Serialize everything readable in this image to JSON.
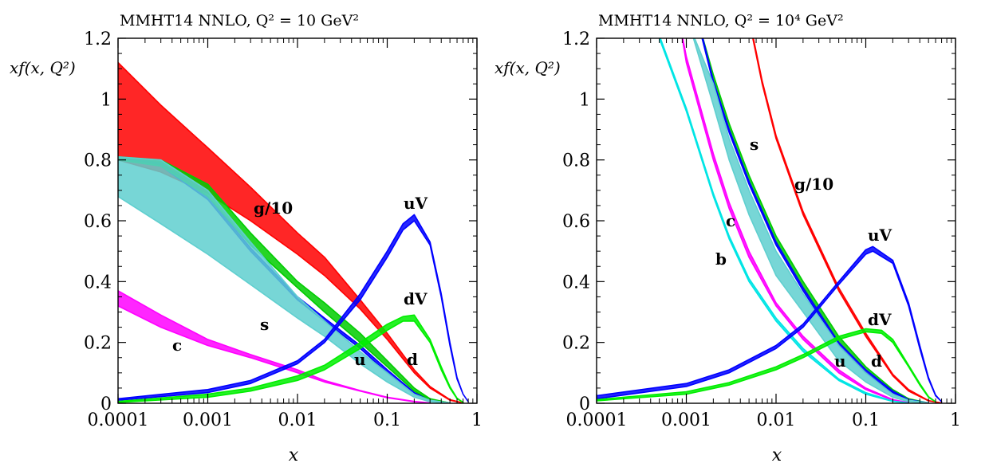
{
  "chart_data": [
    {
      "type": "line",
      "title": "MMHT14 NNLO, Q² = 10 GeV²",
      "xlabel": "x",
      "ylabel": "xf(x, Q²)",
      "xscale": "log",
      "xlim": [
        0.0001,
        1
      ],
      "ylim": [
        0,
        1.2
      ],
      "x_ticks": [
        "0.0001",
        "0.001",
        "0.01",
        "0.1",
        "1"
      ],
      "y_ticks": [
        "0",
        "0.2",
        "0.4",
        "0.6",
        "0.8",
        "1",
        "1.2"
      ],
      "series": [
        {
          "name": "g/10",
          "color": "#ff0000",
          "x": [
            0.0001,
            0.0003,
            0.001,
            0.003,
            0.01,
            0.02,
            0.05,
            0.1,
            0.2,
            0.3,
            0.5,
            0.7
          ],
          "lower": [
            0.8,
            0.76,
            0.69,
            0.6,
            0.49,
            0.42,
            0.31,
            0.21,
            0.1,
            0.05,
            0.01,
            0.001
          ],
          "upper": [
            1.12,
            0.98,
            0.84,
            0.71,
            0.56,
            0.48,
            0.34,
            0.23,
            0.11,
            0.055,
            0.012,
            0.001
          ]
        },
        {
          "name": "ubar",
          "color": "#0000ff",
          "x": [
            0.0001,
            0.0003,
            0.001,
            0.003,
            0.01,
            0.02,
            0.05,
            0.1,
            0.2,
            0.3,
            0.5
          ],
          "lower": [
            0.8,
            0.78,
            0.67,
            0.5,
            0.34,
            0.27,
            0.18,
            0.1,
            0.03,
            0.01,
            0.001
          ],
          "upper": [
            0.81,
            0.79,
            0.68,
            0.51,
            0.35,
            0.28,
            0.19,
            0.11,
            0.035,
            0.012,
            0.001
          ]
        },
        {
          "name": "dbar",
          "color": "#00cc00",
          "x": [
            0.0001,
            0.0003,
            0.001,
            0.003,
            0.01,
            0.02,
            0.05,
            0.1,
            0.2,
            0.3,
            0.5
          ],
          "lower": [
            0.8,
            0.78,
            0.68,
            0.52,
            0.38,
            0.3,
            0.2,
            0.12,
            0.04,
            0.012,
            0.001
          ],
          "upper": [
            0.81,
            0.8,
            0.72,
            0.56,
            0.4,
            0.33,
            0.23,
            0.14,
            0.05,
            0.015,
            0.001
          ]
        },
        {
          "name": "s",
          "color": "#5fcfcf",
          "x": [
            0.0001,
            0.0003,
            0.001,
            0.003,
            0.01,
            0.02,
            0.05,
            0.1,
            0.2,
            0.3,
            0.5
          ],
          "lower": [
            0.68,
            0.59,
            0.49,
            0.39,
            0.28,
            0.22,
            0.13,
            0.07,
            0.02,
            0.005,
            0.0005
          ],
          "upper": [
            0.81,
            0.8,
            0.7,
            0.53,
            0.35,
            0.27,
            0.17,
            0.1,
            0.03,
            0.01,
            0.001
          ]
        },
        {
          "name": "c",
          "color": "#ff00ff",
          "x": [
            0.0001,
            0.0003,
            0.001,
            0.003,
            0.01,
            0.02,
            0.05,
            0.1,
            0.2,
            0.3
          ],
          "lower": [
            0.32,
            0.25,
            0.19,
            0.15,
            0.1,
            0.07,
            0.04,
            0.018,
            0.005,
            0.001
          ],
          "upper": [
            0.37,
            0.29,
            0.21,
            0.16,
            0.11,
            0.075,
            0.042,
            0.02,
            0.006,
            0.001
          ]
        },
        {
          "name": "u_V",
          "color": "#0000ff",
          "x": [
            0.0001,
            0.001,
            0.003,
            0.01,
            0.02,
            0.05,
            0.1,
            0.15,
            0.2,
            0.3,
            0.4,
            0.5,
            0.6,
            0.7,
            0.8
          ],
          "lower": [
            0.01,
            0.035,
            0.065,
            0.13,
            0.2,
            0.34,
            0.48,
            0.57,
            0.6,
            0.52,
            0.35,
            0.19,
            0.08,
            0.03,
            0.005
          ],
          "upper": [
            0.015,
            0.045,
            0.075,
            0.14,
            0.21,
            0.36,
            0.5,
            0.59,
            0.62,
            0.53,
            0.36,
            0.2,
            0.085,
            0.03,
            0.005
          ]
        },
        {
          "name": "d_V",
          "color": "#00ee00",
          "x": [
            0.0001,
            0.001,
            0.003,
            0.01,
            0.02,
            0.05,
            0.1,
            0.15,
            0.2,
            0.3,
            0.4,
            0.5,
            0.6,
            0.7
          ],
          "lower": [
            0.003,
            0.02,
            0.04,
            0.075,
            0.11,
            0.18,
            0.24,
            0.27,
            0.27,
            0.2,
            0.11,
            0.05,
            0.015,
            0.003
          ],
          "upper": [
            0.006,
            0.03,
            0.05,
            0.09,
            0.125,
            0.2,
            0.26,
            0.285,
            0.29,
            0.21,
            0.12,
            0.055,
            0.017,
            0.003
          ]
        }
      ],
      "labels": [
        {
          "name": "g/10",
          "text": "g/10",
          "color": "#ff0000"
        },
        {
          "name": "u_V",
          "text": "uV",
          "color": "#0000cc"
        },
        {
          "name": "d_V",
          "text": "dV",
          "color": "#00dd00"
        },
        {
          "name": "s",
          "text": "s",
          "color": "#5fcfcf"
        },
        {
          "name": "ubar",
          "text": "u",
          "color": "#0000cc"
        },
        {
          "name": "dbar",
          "text": "d",
          "color": "#00dd00"
        },
        {
          "name": "c",
          "text": "c",
          "color": "#ff00ff"
        }
      ]
    },
    {
      "type": "line",
      "title": "MMHT14 NNLO, Q² = 10⁴ GeV²",
      "xlabel": "x",
      "ylabel": "xf(x, Q²)",
      "xscale": "log",
      "xlim": [
        0.0001,
        1
      ],
      "ylim": [
        0,
        1.2
      ],
      "x_ticks": [
        "0.0001",
        "0.001",
        "0.01",
        "0.1",
        "1"
      ],
      "y_ticks": [
        "0",
        "0.2",
        "0.4",
        "0.6",
        "0.8",
        "1",
        "1.2"
      ],
      "series": [
        {
          "name": "g/10",
          "color": "#ff0000",
          "x": [
            0.0055,
            0.007,
            0.01,
            0.02,
            0.05,
            0.1,
            0.2,
            0.3,
            0.5,
            0.7
          ],
          "lower": [
            1.2,
            1.05,
            0.87,
            0.62,
            0.37,
            0.22,
            0.09,
            0.04,
            0.008,
            0.001
          ],
          "upper": [
            1.21,
            1.06,
            0.88,
            0.63,
            0.38,
            0.23,
            0.095,
            0.045,
            0.009,
            0.001
          ]
        },
        {
          "name": "dbar",
          "color": "#00cc00",
          "x": [
            0.0015,
            0.002,
            0.003,
            0.005,
            0.01,
            0.02,
            0.05,
            0.1,
            0.2,
            0.3,
            0.5
          ],
          "lower": [
            1.2,
            1.06,
            0.9,
            0.73,
            0.53,
            0.38,
            0.2,
            0.11,
            0.04,
            0.012,
            0.001
          ],
          "upper": [
            1.21,
            1.08,
            0.92,
            0.75,
            0.55,
            0.4,
            0.22,
            0.12,
            0.045,
            0.015,
            0.001
          ]
        },
        {
          "name": "ubar",
          "color": "#0000ff",
          "x": [
            0.0015,
            0.002,
            0.003,
            0.005,
            0.01,
            0.02,
            0.05,
            0.1,
            0.2,
            0.3,
            0.5
          ],
          "lower": [
            1.2,
            1.05,
            0.89,
            0.72,
            0.52,
            0.37,
            0.19,
            0.1,
            0.035,
            0.01,
            0.001
          ],
          "upper": [
            1.21,
            1.06,
            0.9,
            0.73,
            0.53,
            0.38,
            0.2,
            0.11,
            0.04,
            0.012,
            0.001
          ]
        },
        {
          "name": "s",
          "color": "#5fcfcf",
          "x": [
            0.0012,
            0.002,
            0.003,
            0.005,
            0.01,
            0.02,
            0.05,
            0.1,
            0.2,
            0.3,
            0.5
          ],
          "lower": [
            1.2,
            0.98,
            0.8,
            0.62,
            0.42,
            0.3,
            0.14,
            0.07,
            0.02,
            0.005,
            0.0005
          ],
          "upper": [
            1.21,
            1.05,
            0.87,
            0.7,
            0.5,
            0.36,
            0.19,
            0.1,
            0.03,
            0.01,
            0.001
          ]
        },
        {
          "name": "c",
          "color": "#ff00ff",
          "x": [
            0.0009,
            0.001,
            0.002,
            0.003,
            0.005,
            0.01,
            0.02,
            0.05,
            0.1,
            0.2,
            0.3
          ],
          "lower": [
            1.2,
            1.12,
            0.8,
            0.64,
            0.48,
            0.32,
            0.21,
            0.1,
            0.045,
            0.01,
            0.002
          ],
          "upper": [
            1.21,
            1.14,
            0.82,
            0.66,
            0.5,
            0.33,
            0.22,
            0.11,
            0.05,
            0.012,
            0.002
          ]
        },
        {
          "name": "b",
          "color": "#00e5e5",
          "x": [
            0.0005,
            0.001,
            0.002,
            0.003,
            0.005,
            0.01,
            0.02,
            0.05,
            0.1,
            0.2,
            0.3
          ],
          "lower": [
            1.2,
            0.96,
            0.68,
            0.54,
            0.4,
            0.27,
            0.17,
            0.075,
            0.03,
            0.006,
            0.001
          ],
          "upper": [
            1.21,
            0.97,
            0.69,
            0.55,
            0.41,
            0.28,
            0.18,
            0.08,
            0.035,
            0.007,
            0.001
          ]
        },
        {
          "name": "u_V",
          "color": "#0000ff",
          "x": [
            0.0001,
            0.001,
            0.003,
            0.01,
            0.02,
            0.05,
            0.1,
            0.12,
            0.2,
            0.3,
            0.4,
            0.5,
            0.6,
            0.7
          ],
          "lower": [
            0.015,
            0.055,
            0.1,
            0.18,
            0.25,
            0.39,
            0.49,
            0.5,
            0.46,
            0.32,
            0.18,
            0.08,
            0.025,
            0.005
          ],
          "upper": [
            0.025,
            0.065,
            0.11,
            0.19,
            0.26,
            0.4,
            0.505,
            0.515,
            0.47,
            0.33,
            0.19,
            0.085,
            0.027,
            0.005
          ]
        },
        {
          "name": "d_V",
          "color": "#00ee00",
          "x": [
            0.0001,
            0.001,
            0.003,
            0.01,
            0.02,
            0.05,
            0.1,
            0.15,
            0.2,
            0.3,
            0.4,
            0.5,
            0.6
          ],
          "lower": [
            0.008,
            0.03,
            0.06,
            0.11,
            0.15,
            0.21,
            0.235,
            0.23,
            0.2,
            0.12,
            0.06,
            0.02,
            0.005
          ],
          "upper": [
            0.012,
            0.038,
            0.068,
            0.12,
            0.16,
            0.22,
            0.245,
            0.24,
            0.21,
            0.125,
            0.065,
            0.022,
            0.005
          ]
        }
      ],
      "labels": [
        {
          "name": "g/10",
          "text": "g/10",
          "color": "#ff0000"
        },
        {
          "name": "s",
          "text": "s",
          "color": "#5fcfcf"
        },
        {
          "name": "c",
          "text": "c",
          "color": "#ff00ff"
        },
        {
          "name": "b",
          "text": "b",
          "color": "#00e5e5"
        },
        {
          "name": "u_V",
          "text": "uV",
          "color": "#0000cc"
        },
        {
          "name": "d_V",
          "text": "dV",
          "color": "#00dd00"
        },
        {
          "name": "ubar",
          "text": "u",
          "color": "#0000cc"
        },
        {
          "name": "dbar",
          "text": "d",
          "color": "#00dd00"
        }
      ]
    }
  ]
}
